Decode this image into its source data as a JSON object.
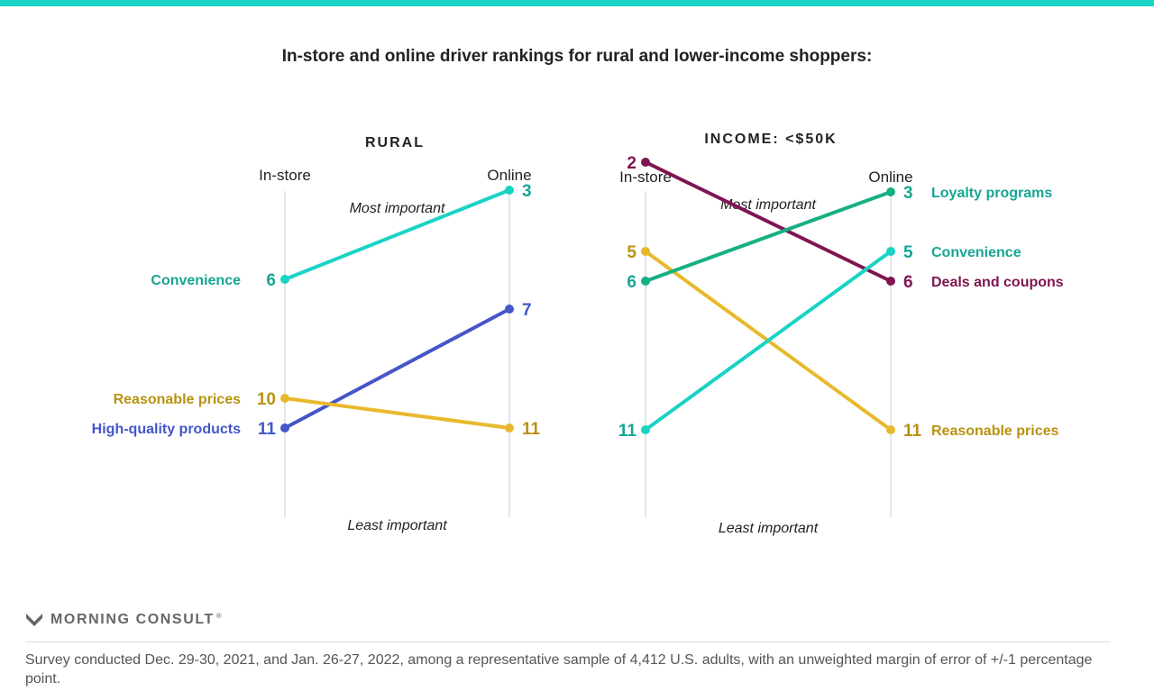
{
  "header": {
    "accent_color": "#19d3c5",
    "title": "In-store and online driver rankings for rural and lower-income shoppers:"
  },
  "chart_data": [
    {
      "type": "line",
      "title": "RURAL",
      "x": [
        "In-store",
        "Online"
      ],
      "y_top_label": "Most important",
      "y_bottom_label": "Least important",
      "y_scale": "rank (1 = most important)",
      "ylim": [
        1,
        12
      ],
      "grid": false,
      "series": [
        {
          "name": "Convenience",
          "values": [
            6,
            3
          ],
          "color": "#19d3c5",
          "label_color": "#17a594",
          "label_side": "left"
        },
        {
          "name": "High-quality products",
          "values": [
            11,
            7
          ],
          "color": "#4456c9",
          "label_color": "#4456c9",
          "label_side": "left"
        },
        {
          "name": "Reasonable prices",
          "values": [
            10,
            11
          ],
          "color": "#e8b92c",
          "label_color": "#b8920f",
          "label_side": "left"
        }
      ]
    },
    {
      "type": "line",
      "title": "INCOME: <$50K",
      "x": [
        "In-store",
        "Online"
      ],
      "y_top_label": "Most important",
      "y_bottom_label": "Least important",
      "y_scale": "rank (1 = most important)",
      "ylim": [
        1,
        12
      ],
      "grid": false,
      "series": [
        {
          "name": "Deals and coupons",
          "values": [
            2,
            6
          ],
          "color": "#7f1550",
          "label_color": "#7f1550",
          "label_side": "right"
        },
        {
          "name": "Reasonable prices",
          "values": [
            5,
            11
          ],
          "color": "#e8b92c",
          "label_color": "#b8920f",
          "label_side": "right"
        },
        {
          "name": "Loyalty programs",
          "values": [
            6,
            3
          ],
          "color": "#14b083",
          "label_color": "#17a594",
          "label_side": "right"
        },
        {
          "name": "Convenience",
          "values": [
            11,
            5
          ],
          "color": "#19d3c5",
          "label_color": "#17a594",
          "label_side": "right"
        }
      ]
    }
  ],
  "brand": {
    "name": "MORNING CONSULT",
    "trademark": "®",
    "logo_icon": "morning-consult-chevron-icon"
  },
  "footnote": "Survey conducted Dec. 29-30, 2021, and Jan. 26-27, 2022, among a representative sample of 4,412 U.S. adults, with an unweighted margin of error of +/-1 percentage point."
}
